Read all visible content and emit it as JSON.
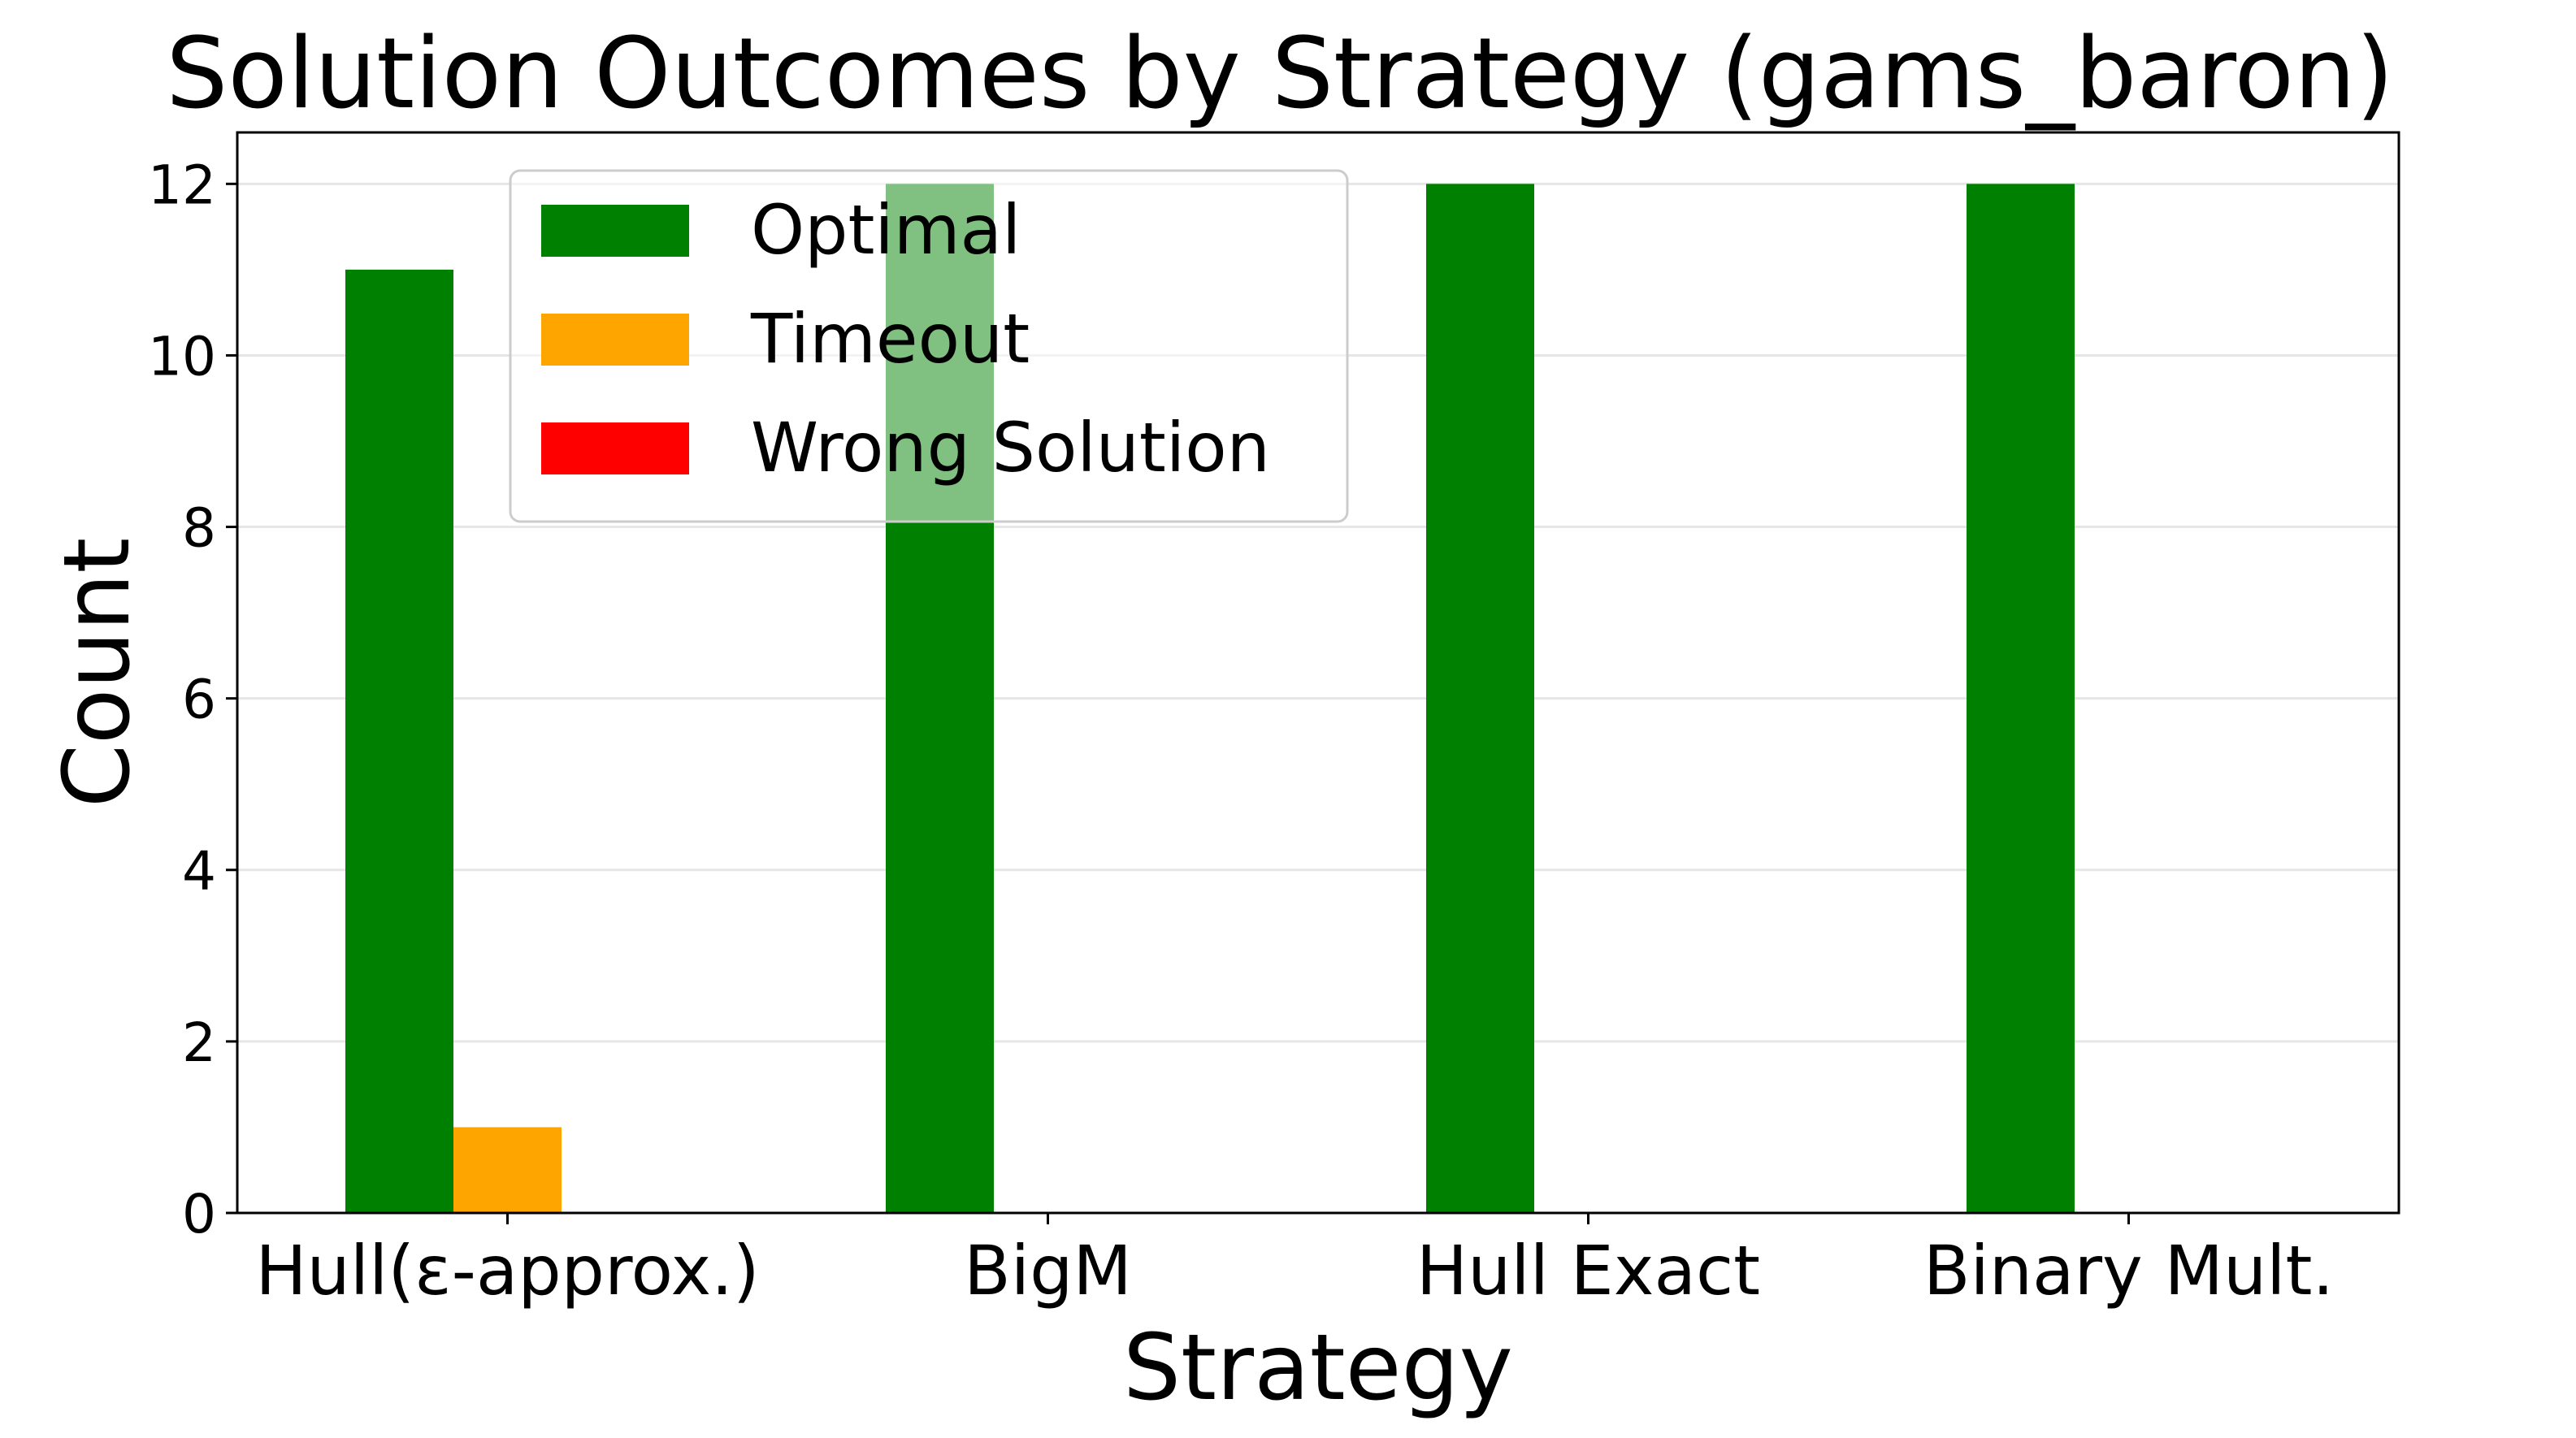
{
  "chart_data": {
    "type": "bar",
    "title": "Solution Outcomes by Strategy (gams_baron)",
    "xlabel": "Strategy",
    "ylabel": "Count",
    "categories": [
      "Hull(ε-approx.)",
      "BigM",
      "Hull Exact",
      "Binary Mult."
    ],
    "series": [
      {
        "name": "Optimal",
        "color": "#008000",
        "values": [
          11,
          12,
          12,
          12
        ]
      },
      {
        "name": "Timeout",
        "color": "#ffa500",
        "values": [
          1,
          0,
          0,
          0
        ]
      },
      {
        "name": "Wrong Solution",
        "color": "#ff0000",
        "values": [
          0,
          0,
          0,
          0
        ]
      }
    ],
    "ylim": [
      0,
      12.6
    ],
    "yticks": [
      0,
      2,
      4,
      6,
      8,
      10,
      12
    ],
    "grid": "y",
    "legend_position": "upper center"
  }
}
